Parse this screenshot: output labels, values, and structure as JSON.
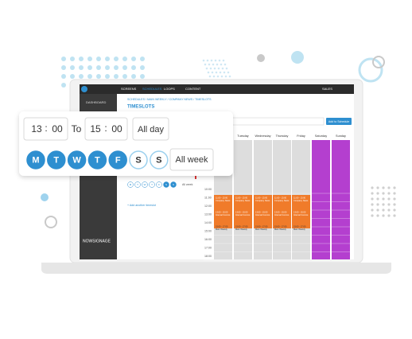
{
  "nav": {
    "items": [
      "SCREENS",
      "SCHEDULES",
      "LOOPS",
      "CONTENT"
    ],
    "account": "SALES"
  },
  "sidebar": {
    "item": "DASHBOARD",
    "logo": "NOWSIGNAGE"
  },
  "header": {
    "breadcrumb": "SCHEDULES / MAIN WEEKLY / COMPANY NEWS / TIMESLOTS",
    "title": "TIMESLOTS",
    "button": "Add to Schedule"
  },
  "panel": {
    "days": [
      "M",
      "T",
      "W",
      "T",
      "F",
      "S",
      "S"
    ],
    "all_week": "All week",
    "add": "+ Add another timeslot"
  },
  "calendar": {
    "days": [
      "Tuesday",
      "Wednesday",
      "Thursday",
      "Friday",
      "Saturday",
      "Sunday"
    ],
    "times": [
      "10:00",
      "11:00",
      "12:00",
      "13:00",
      "14:00",
      "15:00",
      "16:00",
      "17:00",
      "18:00"
    ],
    "events": [
      {
        "time": "11:00 - 13:00",
        "name": "Company News"
      },
      {
        "time": "13:00 - 15:00",
        "name": "Internal Comms"
      },
      {
        "time": "15:00 - 17:00",
        "name": "Main Weekly"
      }
    ]
  },
  "popup": {
    "from_hour": "13",
    "from_min": "00",
    "separator": ":",
    "to": "To",
    "to_hour": "15",
    "to_min": "00",
    "all_day": "All day",
    "days": [
      "M",
      "T",
      "W",
      "T",
      "F",
      "S",
      "S"
    ],
    "all_week": "All week"
  }
}
